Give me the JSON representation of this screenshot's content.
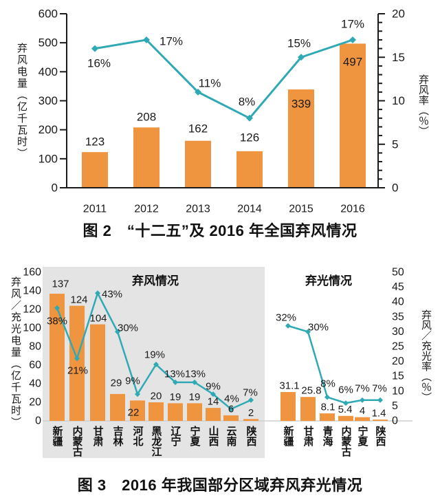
{
  "colors": {
    "bar": "#F0953F",
    "line": "#2FA9B4",
    "axis": "#1a1a1a",
    "text": "#1a1a1a",
    "inside_label": "#6e3210",
    "panel": "#E4E4E4",
    "baseline": "#cfcfcf"
  },
  "chart_data": [
    {
      "type": "bar+line",
      "caption": "图 2　“十二五”及 2016 年全国弃风情况",
      "categories": [
        "2011",
        "2012",
        "2013",
        "2014",
        "2015",
        "2016"
      ],
      "series": [
        {
          "name": "弃风电量",
          "type": "bar",
          "values": [
            123,
            208,
            162,
            126,
            339,
            497
          ],
          "labels": [
            "123",
            "208",
            "162",
            "126",
            "339",
            "497"
          ]
        },
        {
          "name": "弃风率",
          "type": "line",
          "values": [
            16,
            17,
            11,
            8,
            15,
            17
          ],
          "labels": [
            "16%",
            "17%",
            "11%",
            "8%",
            "15%",
            "17%"
          ]
        }
      ],
      "left_axis": {
        "title": "弃风电量（亿千瓦时）",
        "min": 0,
        "max": 600,
        "step": 100
      },
      "right_axis": {
        "title": "弃风率（％）",
        "min": 0,
        "max": 20,
        "step": 5
      },
      "grid": false,
      "legend": "none"
    },
    {
      "type": "bar+line",
      "caption": "图 3　2016 年我国部分区域弃风弃光情况",
      "groups": [
        {
          "name": "弃风情况",
          "categories": [
            "新疆",
            "内蒙古",
            "甘肃",
            "吉林",
            "河北",
            "黑龙江",
            "辽宁",
            "宁夏",
            "山西",
            "云南",
            "陕西"
          ],
          "bar_values": [
            137,
            124,
            104,
            29,
            22,
            20,
            19,
            19,
            14,
            6,
            2
          ],
          "bar_labels": [
            "137",
            "124",
            "104",
            "29",
            "22",
            "20",
            "19",
            "19",
            "14",
            "6",
            "2"
          ],
          "line_values": [
            38,
            21,
            43,
            30,
            9,
            19,
            13,
            13,
            9,
            4,
            7
          ],
          "line_labels": [
            "38%",
            "21%",
            "43%",
            "30%",
            "9%",
            "19%",
            "13%",
            "13%",
            "9%",
            "4%",
            "7%"
          ]
        },
        {
          "name": "弃光情况",
          "categories": [
            "新疆",
            "甘肃",
            "青海",
            "内蒙古",
            "宁夏",
            "陕西"
          ],
          "bar_values": [
            31.1,
            25.8,
            8.1,
            5.4,
            4,
            1.4
          ],
          "bar_labels": [
            "31.1",
            "25.8",
            "8.1",
            "5.4",
            "4",
            "1.4"
          ],
          "line_values": [
            32,
            30,
            8,
            6,
            7,
            7
          ],
          "line_labels": [
            "32%",
            "30%",
            "8%",
            "6%",
            "7%",
            "7%"
          ]
        }
      ],
      "left_axis": {
        "title": "弃风／充光电量（亿千瓦时）",
        "min": 0,
        "max": 160,
        "step": 20
      },
      "right_axis": {
        "title": "弃风／充光率（％）",
        "min": 0,
        "max": 50,
        "step": 5
      },
      "grid": false,
      "legend": "none"
    }
  ]
}
